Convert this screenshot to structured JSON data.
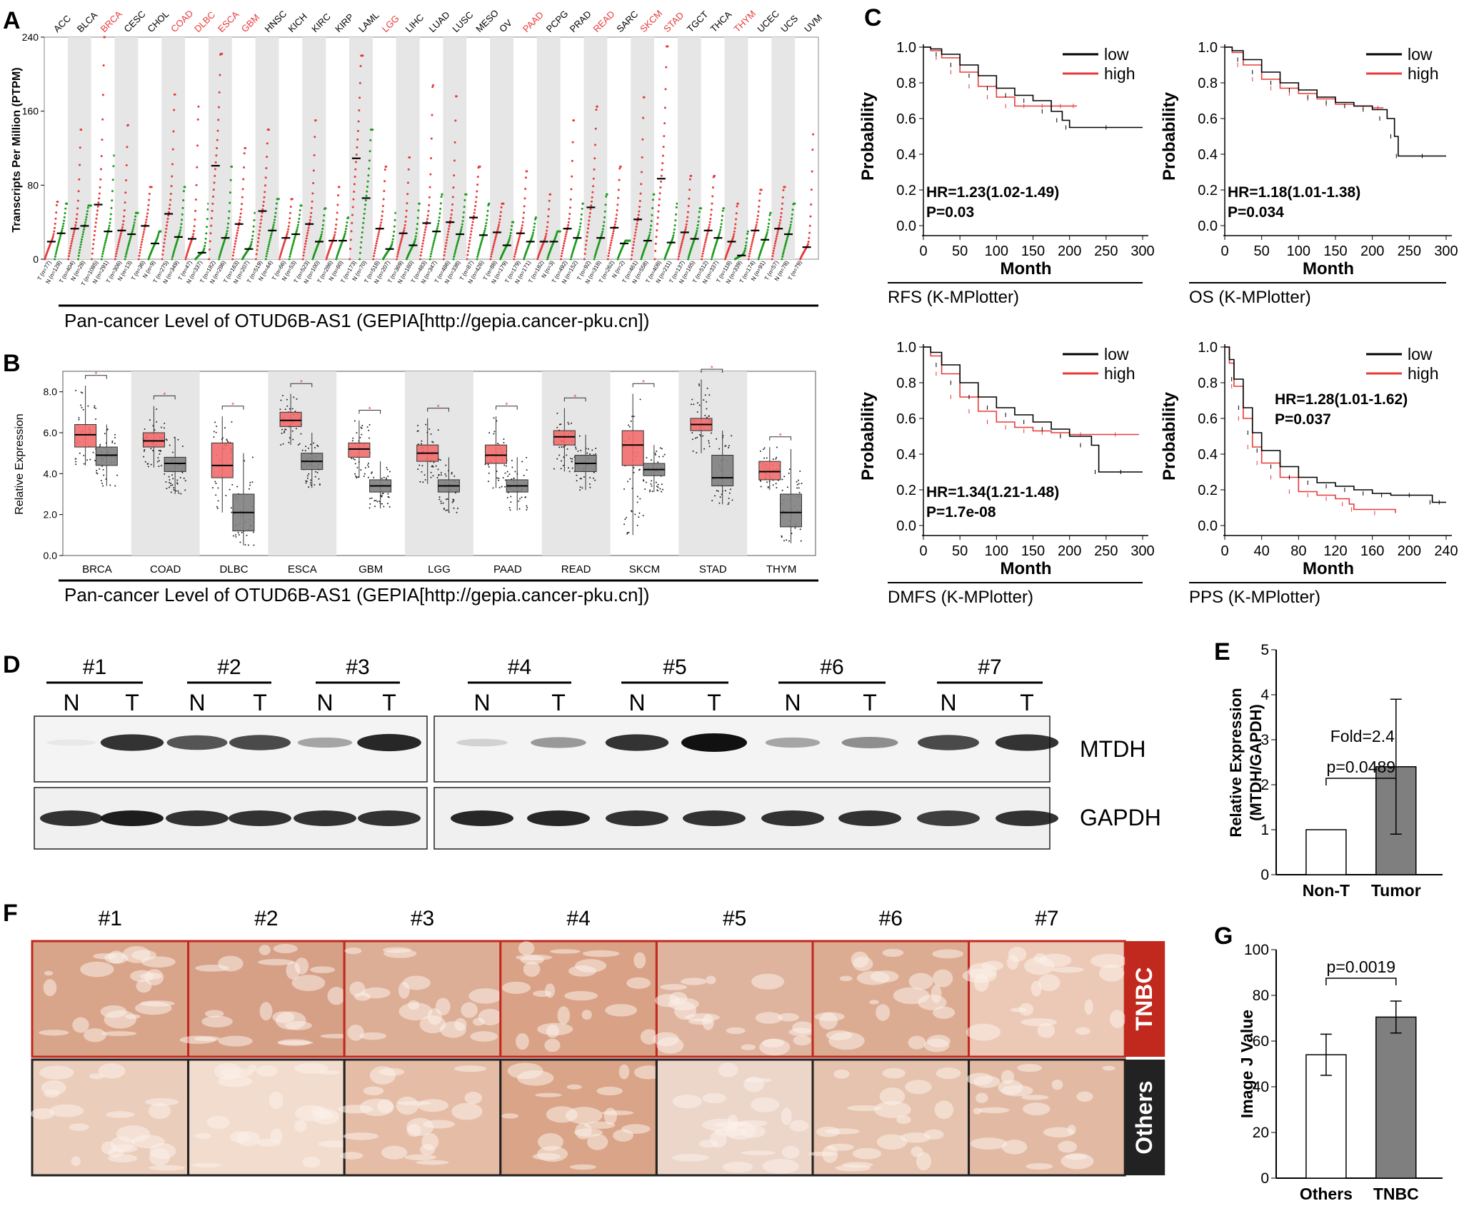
{
  "panels": {
    "a": "A",
    "b": "B",
    "c": "C",
    "d": "D",
    "e": "E",
    "f": "F",
    "g": "G"
  },
  "panel_a": {
    "ylabel": "Transcripts Per Million (PTPM)",
    "yticks": [
      "0",
      "80",
      "160",
      "240"
    ],
    "caption": "Pan-cancer Level of OTUD6B-AS1 (GEPIA[http://gepia.cancer-pku.cn])",
    "cancers": [
      {
        "name": "ACC",
        "hl": false,
        "t_n": "T (n=77)",
        "n_n": "N (n=128)",
        "t_med": 19,
        "n_med": 28,
        "t_max": 62,
        "n_max": 60
      },
      {
        "name": "BLCA",
        "hl": false,
        "t_n": "T (n=404)",
        "n_n": "N (n=28)",
        "t_med": 33,
        "n_med": 36,
        "t_max": 140,
        "n_max": 58
      },
      {
        "name": "BRCA",
        "hl": true,
        "t_n": "T (n=1085)",
        "n_n": "N (n=291)",
        "t_med": 59,
        "n_med": 30,
        "t_max": 240,
        "n_max": 112
      },
      {
        "name": "CESC",
        "hl": false,
        "t_n": "T (n=306)",
        "n_n": "N (n=13)",
        "t_med": 31,
        "n_med": 27,
        "t_max": 145,
        "n_max": 50
      },
      {
        "name": "CHOL",
        "hl": false,
        "t_n": "T (n=36)",
        "n_n": "N (n=9)",
        "t_med": 36,
        "n_med": 17,
        "t_max": 78,
        "n_max": 30
      },
      {
        "name": "COAD",
        "hl": true,
        "t_n": "T (n=275)",
        "n_n": "N (n=349)",
        "t_med": 49,
        "n_med": 24,
        "t_max": 178,
        "n_max": 78
      },
      {
        "name": "DLBC",
        "hl": true,
        "t_n": "T (n=47)",
        "n_n": "N (n=337)",
        "t_med": 22,
        "n_med": 7,
        "t_max": 165,
        "n_max": 60
      },
      {
        "name": "ESCA",
        "hl": true,
        "t_n": "T (n=182)",
        "n_n": "N (n=286)",
        "t_med": 101,
        "n_med": 23,
        "t_max": 222,
        "n_max": 100
      },
      {
        "name": "GBM",
        "hl": true,
        "t_n": "T (n=163)",
        "n_n": "N (n=207)",
        "t_med": 38,
        "n_med": 11,
        "t_max": 120,
        "n_max": 50
      },
      {
        "name": "HNSC",
        "hl": false,
        "t_n": "T (n=519)",
        "n_n": "N (n=44)",
        "t_med": 52,
        "n_med": 31,
        "t_max": 140,
        "n_max": 65
      },
      {
        "name": "KICH",
        "hl": false,
        "t_n": "T (n=66)",
        "n_n": "N (n=53)",
        "t_med": 23,
        "n_med": 27,
        "t_max": 65,
        "n_max": 58
      },
      {
        "name": "KIRC",
        "hl": false,
        "t_n": "T (n=523)",
        "n_n": "N (n=100)",
        "t_med": 38,
        "n_med": 19,
        "t_max": 150,
        "n_max": 55
      },
      {
        "name": "KIRP",
        "hl": false,
        "t_n": "T (n=286)",
        "n_n": "N (n=60)",
        "t_med": 20,
        "n_med": 20,
        "t_max": 78,
        "n_max": 45
      },
      {
        "name": "LAML",
        "hl": false,
        "t_n": "T (n=173)",
        "n_n": "N (n=70)",
        "t_med": 109,
        "n_med": 66,
        "t_max": 220,
        "n_max": 140
      },
      {
        "name": "LGG",
        "hl": true,
        "t_n": "T (n=518)",
        "n_n": "N (n=207)",
        "t_med": 33,
        "n_med": 11,
        "t_max": 100,
        "n_max": 50
      },
      {
        "name": "LIHC",
        "hl": false,
        "t_n": "T (n=369)",
        "n_n": "N (n=160)",
        "t_med": 28,
        "n_med": 15,
        "t_max": 110,
        "n_max": 60
      },
      {
        "name": "LUAD",
        "hl": false,
        "t_n": "T (n=483)",
        "n_n": "N (n=347)",
        "t_med": 39,
        "n_med": 30,
        "t_max": 188,
        "n_max": 70
      },
      {
        "name": "LUSC",
        "hl": false,
        "t_n": "T (n=486)",
        "n_n": "N (n=338)",
        "t_med": 40,
        "n_med": 27,
        "t_max": 176,
        "n_max": 70
      },
      {
        "name": "MESO",
        "hl": false,
        "t_n": "T (n=87)",
        "n_n": "N (n=426)",
        "t_med": 45,
        "n_med": 26,
        "t_max": 100,
        "n_max": 60
      },
      {
        "name": "OV",
        "hl": false,
        "t_n": "T (n=88)",
        "n_n": "N (n=179)",
        "t_med": 29,
        "n_med": 15,
        "t_max": 60,
        "n_max": 40
      },
      {
        "name": "PAAD",
        "hl": true,
        "t_n": "T (n=179)",
        "n_n": "N (n=171)",
        "t_med": 28,
        "n_med": 19,
        "t_max": 95,
        "n_max": 45
      },
      {
        "name": "PCPG",
        "hl": false,
        "t_n": "T (n=182)",
        "n_n": "N (n=3)",
        "t_med": 19,
        "n_med": 19,
        "t_max": 70,
        "n_max": 30
      },
      {
        "name": "PRAD",
        "hl": false,
        "t_n": "T (n=492)",
        "n_n": "N (n=152)",
        "t_med": 33,
        "n_med": 23,
        "t_max": 150,
        "n_max": 60
      },
      {
        "name": "READ",
        "hl": true,
        "t_n": "T (n=92)",
        "n_n": "N (n=318)",
        "t_med": 56,
        "n_med": 23,
        "t_max": 165,
        "n_max": 70
      },
      {
        "name": "SARC",
        "hl": false,
        "t_n": "T (n=262)",
        "n_n": "N (n=2)",
        "t_med": 34,
        "n_med": 17,
        "t_max": 100,
        "n_max": 20
      },
      {
        "name": "SKCM",
        "hl": true,
        "t_n": "T (n=461)",
        "n_n": "N (n=558)",
        "t_med": 43,
        "n_med": 20,
        "t_max": 175,
        "n_max": 70
      },
      {
        "name": "STAD",
        "hl": true,
        "t_n": "T (n=408)",
        "n_n": "N (n=211)",
        "t_med": 87,
        "n_med": 18,
        "t_max": 230,
        "n_max": 60
      },
      {
        "name": "TGCT",
        "hl": false,
        "t_n": "T (n=137)",
        "n_n": "N (n=165)",
        "t_med": 29,
        "n_med": 22,
        "t_max": 90,
        "n_max": 55
      },
      {
        "name": "THCA",
        "hl": false,
        "t_n": "T (n=512)",
        "n_n": "N (n=337)",
        "t_med": 31,
        "n_med": 23,
        "t_max": 90,
        "n_max": 55
      },
      {
        "name": "THYM",
        "hl": true,
        "t_n": "T (n=118)",
        "n_n": "N (n=339)",
        "t_med": 19,
        "n_med": 4,
        "t_max": 60,
        "n_max": 30
      },
      {
        "name": "UCEC",
        "hl": false,
        "t_n": "T (n=174)",
        "n_n": "N (n=91)",
        "t_med": 31,
        "n_med": 21,
        "t_max": 75,
        "n_max": 50
      },
      {
        "name": "UCS",
        "hl": false,
        "t_n": "T (n=57)",
        "n_n": "N (n=78)",
        "t_med": 33,
        "n_med": 27,
        "t_max": 78,
        "n_max": 60
      },
      {
        "name": "UVM",
        "hl": false,
        "t_n": "T (n=79)",
        "n_n": "",
        "t_med": 13,
        "n_med": null,
        "t_max": 135,
        "n_max": null
      }
    ]
  },
  "panel_b": {
    "ylabel": "Relative Expression",
    "yticks": [
      "0.0",
      "2.0",
      "4.0",
      "6.0",
      "8.0"
    ],
    "caption": "Pan-cancer Level of OTUD6B-AS1 (GEPIA[http://gepia.cancer-pku.cn])",
    "star": "*",
    "groups": [
      {
        "name": "BRCA",
        "t": [
          4.4,
          5.3,
          5.9,
          6.4,
          8.3
        ],
        "n": [
          3.4,
          4.4,
          4.9,
          5.3,
          6.4
        ]
      },
      {
        "name": "COAD",
        "t": [
          4.3,
          5.3,
          5.6,
          6.0,
          7.3
        ],
        "n": [
          3.0,
          4.1,
          4.5,
          4.8,
          5.8
        ]
      },
      {
        "name": "DLBC",
        "t": [
          2.1,
          3.8,
          4.4,
          5.5,
          6.8
        ],
        "n": [
          0.5,
          1.2,
          2.1,
          3.0,
          5.0
        ]
      },
      {
        "name": "ESCA",
        "t": [
          5.4,
          6.3,
          6.6,
          7.0,
          7.9
        ],
        "n": [
          3.3,
          4.2,
          4.6,
          5.0,
          6.0
        ]
      },
      {
        "name": "GBM",
        "t": [
          3.8,
          4.8,
          5.2,
          5.5,
          6.6
        ],
        "n": [
          2.3,
          3.1,
          3.4,
          3.7,
          4.6
        ]
      },
      {
        "name": "LGG",
        "t": [
          3.5,
          4.6,
          5.0,
          5.4,
          6.7
        ],
        "n": [
          2.1,
          3.1,
          3.4,
          3.7,
          4.8
        ]
      },
      {
        "name": "PAAD",
        "t": [
          3.3,
          4.5,
          4.9,
          5.4,
          6.8
        ],
        "n": [
          2.2,
          3.1,
          3.4,
          3.7,
          4.8
        ]
      },
      {
        "name": "READ",
        "t": [
          4.1,
          5.4,
          5.8,
          6.1,
          7.2
        ],
        "n": [
          3.2,
          4.1,
          4.5,
          4.9,
          5.9
        ]
      },
      {
        "name": "SKCM",
        "t": [
          1.0,
          4.4,
          5.4,
          6.1,
          7.9
        ],
        "n": [
          3.1,
          3.9,
          4.2,
          4.5,
          5.4
        ]
      },
      {
        "name": "STAD",
        "t": [
          5.0,
          6.1,
          6.4,
          6.7,
          8.6
        ],
        "n": [
          2.5,
          3.4,
          3.8,
          4.9,
          6.1
        ]
      },
      {
        "name": "THYM",
        "t": [
          3.2,
          3.7,
          4.1,
          4.6,
          5.3
        ],
        "n": [
          0.6,
          1.4,
          2.1,
          3.0,
          5.2
        ]
      }
    ]
  },
  "km": {
    "ylabel": "Probability",
    "xlabel": "Month",
    "yticks": [
      "0.0",
      "0.2",
      "0.4",
      "0.6",
      "0.8",
      "1.0"
    ],
    "legend_low": "low",
    "legend_high": "high",
    "plots": [
      {
        "id": "rfs",
        "xticks": [
          "0",
          "50",
          "100",
          "150",
          "200",
          "250",
          "300"
        ],
        "xmax": 300,
        "hr": "HR=1.23(1.02-1.49)",
        "p": "P=0.03",
        "caption": "RFS (K-MPlotter)",
        "low": [
          [
            0,
            1.0
          ],
          [
            10,
            0.99
          ],
          [
            25,
            0.96
          ],
          [
            50,
            0.9
          ],
          [
            75,
            0.84
          ],
          [
            100,
            0.77
          ],
          [
            125,
            0.73
          ],
          [
            150,
            0.7
          ],
          [
            175,
            0.64
          ],
          [
            190,
            0.59
          ],
          [
            200,
            0.55
          ],
          [
            300,
            0.55
          ]
        ],
        "high": [
          [
            0,
            1.0
          ],
          [
            10,
            0.98
          ],
          [
            25,
            0.94
          ],
          [
            50,
            0.86
          ],
          [
            75,
            0.78
          ],
          [
            100,
            0.72
          ],
          [
            125,
            0.67
          ],
          [
            150,
            0.67
          ],
          [
            175,
            0.67
          ],
          [
            200,
            0.67
          ],
          [
            210,
            0.67
          ]
        ]
      },
      {
        "id": "os",
        "xticks": [
          "0",
          "50",
          "100",
          "150",
          "200",
          "250",
          "300"
        ],
        "xmax": 300,
        "hr": "HR=1.18(1.01-1.38)",
        "p": "P=0.034",
        "caption": "OS (K-MPlotter)",
        "low": [
          [
            0,
            1.0
          ],
          [
            10,
            0.98
          ],
          [
            25,
            0.93
          ],
          [
            50,
            0.86
          ],
          [
            75,
            0.8
          ],
          [
            100,
            0.76
          ],
          [
            125,
            0.72
          ],
          [
            150,
            0.69
          ],
          [
            175,
            0.67
          ],
          [
            200,
            0.65
          ],
          [
            220,
            0.6
          ],
          [
            230,
            0.5
          ],
          [
            235,
            0.39
          ],
          [
            300,
            0.39
          ]
        ],
        "high": [
          [
            0,
            1.0
          ],
          [
            10,
            0.97
          ],
          [
            25,
            0.9
          ],
          [
            50,
            0.82
          ],
          [
            75,
            0.77
          ],
          [
            100,
            0.74
          ],
          [
            125,
            0.71
          ],
          [
            150,
            0.68
          ],
          [
            175,
            0.67
          ],
          [
            200,
            0.66
          ],
          [
            215,
            0.66
          ]
        ]
      },
      {
        "id": "dmfs",
        "xticks": [
          "0",
          "50",
          "100",
          "150",
          "200",
          "250",
          "300"
        ],
        "xmax": 300,
        "hr": "HR=1.34(1.21-1.48)",
        "p": "P=1.7e-08",
        "caption": "DMFS (K-MPlotter)",
        "low": [
          [
            0,
            1.0
          ],
          [
            10,
            0.97
          ],
          [
            25,
            0.9
          ],
          [
            50,
            0.8
          ],
          [
            75,
            0.72
          ],
          [
            100,
            0.66
          ],
          [
            125,
            0.62
          ],
          [
            150,
            0.58
          ],
          [
            175,
            0.54
          ],
          [
            200,
            0.5
          ],
          [
            230,
            0.45
          ],
          [
            240,
            0.3
          ],
          [
            300,
            0.3
          ]
        ],
        "high": [
          [
            0,
            1.0
          ],
          [
            10,
            0.95
          ],
          [
            25,
            0.85
          ],
          [
            50,
            0.72
          ],
          [
            75,
            0.64
          ],
          [
            100,
            0.58
          ],
          [
            125,
            0.55
          ],
          [
            150,
            0.53
          ],
          [
            175,
            0.52
          ],
          [
            200,
            0.51
          ],
          [
            230,
            0.51
          ],
          [
            295,
            0.51
          ]
        ]
      },
      {
        "id": "pps",
        "xticks": [
          "0",
          "40",
          "80",
          "120",
          "160",
          "200",
          "240"
        ],
        "xmax": 240,
        "hr": "HR=1.28(1.01-1.62)",
        "p": "P=0.037",
        "caption": "PPS (K-MPlotter)",
        "low": [
          [
            0,
            1.0
          ],
          [
            5,
            0.93
          ],
          [
            10,
            0.82
          ],
          [
            20,
            0.66
          ],
          [
            30,
            0.52
          ],
          [
            40,
            0.42
          ],
          [
            60,
            0.33
          ],
          [
            80,
            0.27
          ],
          [
            100,
            0.24
          ],
          [
            120,
            0.22
          ],
          [
            140,
            0.2
          ],
          [
            160,
            0.18
          ],
          [
            180,
            0.17
          ],
          [
            220,
            0.17
          ],
          [
            225,
            0.13
          ],
          [
            240,
            0.13
          ]
        ],
        "high": [
          [
            0,
            1.0
          ],
          [
            5,
            0.91
          ],
          [
            10,
            0.78
          ],
          [
            20,
            0.6
          ],
          [
            30,
            0.44
          ],
          [
            40,
            0.35
          ],
          [
            60,
            0.27
          ],
          [
            80,
            0.19
          ],
          [
            100,
            0.17
          ],
          [
            120,
            0.15
          ],
          [
            135,
            0.12
          ],
          [
            140,
            0.09
          ],
          [
            185,
            0.07
          ]
        ]
      }
    ]
  },
  "panel_d": {
    "pairs": [
      "#1",
      "#2",
      "#3",
      "#4",
      "#5",
      "#6",
      "#7"
    ],
    "n_label": "N",
    "t_label": "T",
    "mtdh_label": "MTDH",
    "gapdh_label": "GAPDH",
    "mtdh_intensity": [
      0.05,
      0.85,
      0.7,
      0.75,
      0.35,
      0.9,
      0.15,
      0.4,
      0.85,
      1.0,
      0.35,
      0.45,
      0.75,
      0.85
    ],
    "gapdh_intensity": [
      0.85,
      0.95,
      0.85,
      0.85,
      0.85,
      0.85,
      0.9,
      0.9,
      0.85,
      0.85,
      0.85,
      0.85,
      0.8,
      0.85
    ]
  },
  "chart_data": [
    {
      "type": "bar",
      "panel": "E",
      "categories": [
        "Non-T",
        "Tumor"
      ],
      "values": [
        1.0,
        2.4
      ],
      "errors": [
        0,
        1.5
      ],
      "ylabel": "Relative Expression (MTDH/GAPDH)",
      "ylabel_line1": "Relative Expression",
      "ylabel_line2": "(MTDH/GAPDH)",
      "ylim": [
        0,
        5
      ],
      "yticks": [
        "0",
        "1",
        "2",
        "3",
        "4",
        "5"
      ],
      "pvalue": "p=0.0489",
      "annotation": "Fold=2.4",
      "colors": [
        "#ffffff",
        "#7f7f7f"
      ]
    },
    {
      "type": "bar",
      "panel": "G",
      "categories": [
        "Others",
        "TNBC"
      ],
      "values": [
        54,
        70.5
      ],
      "errors": [
        9,
        7
      ],
      "ylabel": "Image J Value",
      "ylim": [
        0,
        100
      ],
      "yticks": [
        "0",
        "20",
        "40",
        "60",
        "80",
        "100"
      ],
      "pvalue": "p=0.0019",
      "colors": [
        "#ffffff",
        "#7f7f7f"
      ]
    }
  ],
  "panel_f": {
    "samples": [
      "#1",
      "#2",
      "#3",
      "#4",
      "#5",
      "#6",
      "#7"
    ],
    "tnbc_label": "TNBC",
    "others_label": "Others",
    "tnbc_colors": [
      "#d9a58a",
      "#d6a087",
      "#dcae96",
      "#d9a286",
      "#dfb49e",
      "#dcac92",
      "#ecc9b6"
    ],
    "others_colors": [
      "#ebcdbb",
      "#f1dccd",
      "#e5bca6",
      "#d9a488",
      "#ecd6c9",
      "#e6c3ae",
      "#e2baa4"
    ]
  }
}
